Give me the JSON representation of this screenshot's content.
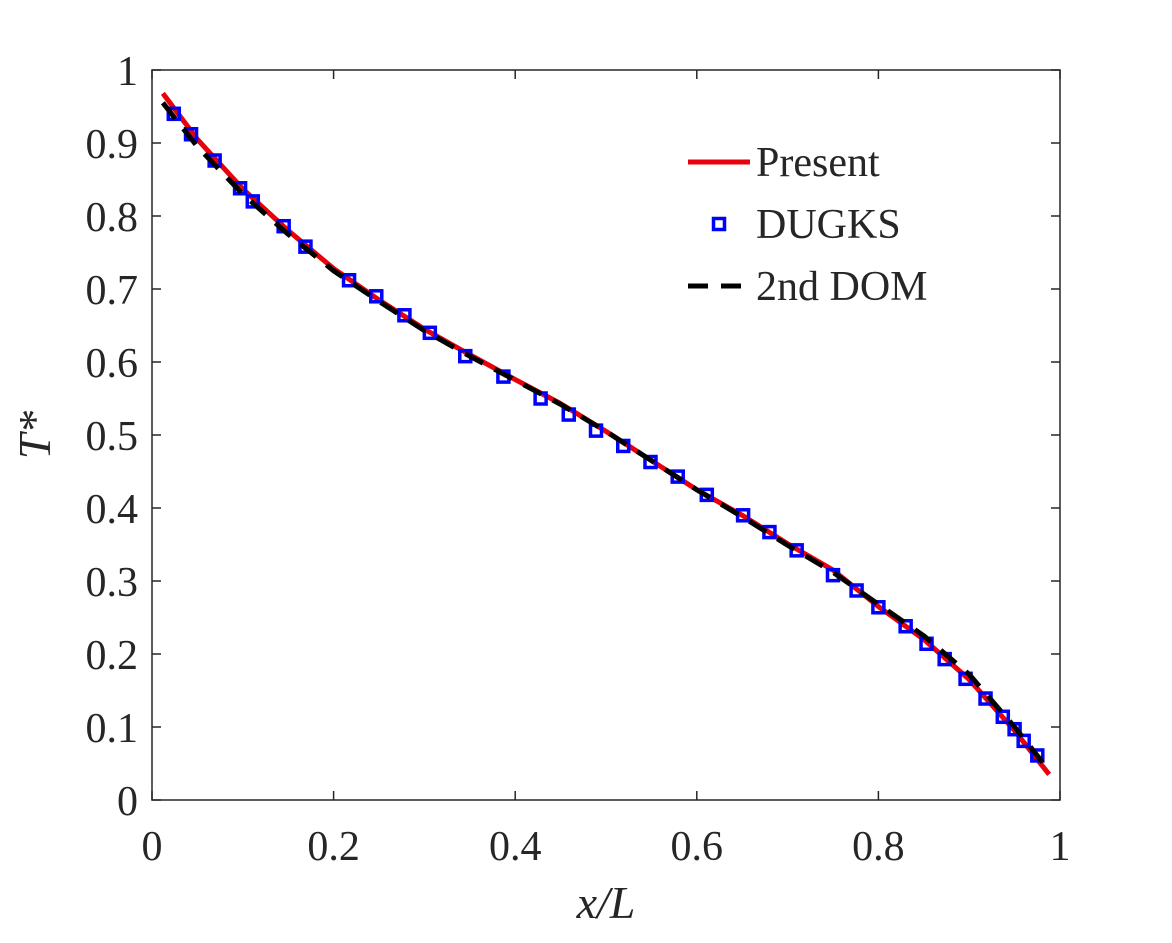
{
  "chart_data": {
    "type": "line",
    "title": "",
    "xlabel": "x/L",
    "ylabel": "T*",
    "xlim": [
      0,
      1
    ],
    "ylim": [
      0,
      1
    ],
    "xticks": [
      0,
      0.2,
      0.4,
      0.6,
      0.8,
      1
    ],
    "yticks": [
      0,
      0.1,
      0.2,
      0.3,
      0.4,
      0.5,
      0.6,
      0.7,
      0.8,
      0.9,
      1
    ],
    "xtick_labels": [
      "0",
      "0.2",
      "0.4",
      "0.6",
      "0.8",
      "1"
    ],
    "ytick_labels": [
      "0",
      "0.1",
      "0.2",
      "0.3",
      "0.4",
      "0.5",
      "0.6",
      "0.7",
      "0.8",
      "0.9",
      "1"
    ],
    "grid": false,
    "legend_position": "top-right",
    "series": [
      {
        "name": "Present",
        "style": "solid-line",
        "color": "#e8000b",
        "x": [
          0.012,
          0.05,
          0.1,
          0.15,
          0.2,
          0.25,
          0.3,
          0.35,
          0.4,
          0.45,
          0.5,
          0.55,
          0.6,
          0.65,
          0.7,
          0.75,
          0.8,
          0.85,
          0.9,
          0.95,
          0.988
        ],
        "y": [
          0.968,
          0.905,
          0.837,
          0.78,
          0.728,
          0.685,
          0.645,
          0.61,
          0.576,
          0.543,
          0.505,
          0.465,
          0.425,
          0.39,
          0.351,
          0.315,
          0.265,
          0.22,
          0.165,
          0.095,
          0.035
        ]
      },
      {
        "name": "DUGKS",
        "style": "square-markers",
        "color": "#0000ff",
        "x": [
          0.024,
          0.043,
          0.069,
          0.097,
          0.111,
          0.145,
          0.169,
          0.217,
          0.247,
          0.278,
          0.306,
          0.345,
          0.387,
          0.428,
          0.459,
          0.489,
          0.519,
          0.549,
          0.579,
          0.611,
          0.651,
          0.68,
          0.71,
          0.75,
          0.776,
          0.8,
          0.83,
          0.853,
          0.873,
          0.896,
          0.918,
          0.937,
          0.95,
          0.96,
          0.975
        ],
        "y": [
          0.94,
          0.912,
          0.876,
          0.838,
          0.82,
          0.786,
          0.758,
          0.712,
          0.69,
          0.664,
          0.64,
          0.608,
          0.58,
          0.55,
          0.528,
          0.506,
          0.485,
          0.463,
          0.443,
          0.418,
          0.39,
          0.367,
          0.342,
          0.308,
          0.287,
          0.264,
          0.238,
          0.214,
          0.193,
          0.166,
          0.139,
          0.114,
          0.097,
          0.081,
          0.061
        ]
      },
      {
        "name": "2nd DOM",
        "style": "dashed-line",
        "color": "#000000",
        "x": [
          0.012,
          0.05,
          0.1,
          0.15,
          0.2,
          0.25,
          0.3,
          0.35,
          0.4,
          0.45,
          0.5,
          0.55,
          0.6,
          0.65,
          0.7,
          0.75,
          0.8,
          0.85,
          0.9,
          0.95,
          0.985
        ],
        "y": [
          0.955,
          0.895,
          0.83,
          0.775,
          0.725,
          0.683,
          0.643,
          0.608,
          0.575,
          0.542,
          0.505,
          0.465,
          0.425,
          0.388,
          0.349,
          0.312,
          0.268,
          0.225,
          0.172,
          0.1,
          0.045
        ]
      }
    ]
  }
}
